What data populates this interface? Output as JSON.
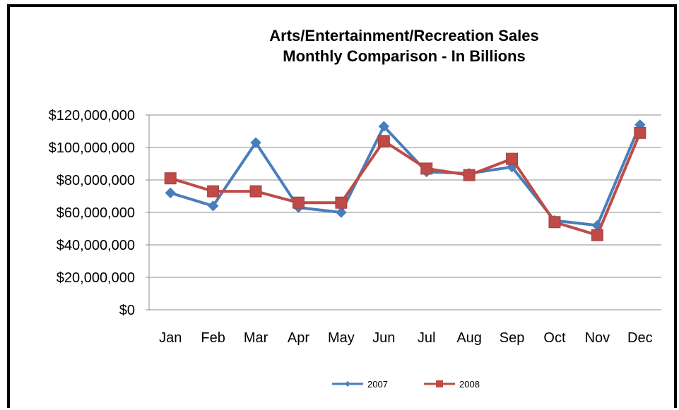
{
  "chart_data": {
    "type": "line",
    "title": [
      "Arts/Entertainment/Recreation Sales",
      "Monthly Comparison - In Billions"
    ],
    "xlabel": "",
    "ylabel": "",
    "categories": [
      "Jan",
      "Feb",
      "Mar",
      "Apr",
      "May",
      "Jun",
      "Jul",
      "Aug",
      "Sep",
      "Oct",
      "Nov",
      "Dec"
    ],
    "ylim": [
      0,
      120000000
    ],
    "yticks": [
      0,
      20000000,
      40000000,
      60000000,
      80000000,
      100000000,
      120000000
    ],
    "ytick_labels": [
      "$0",
      "$20,000,000",
      "$40,000,000",
      "$60,000,000",
      "$80,000,000",
      "$100,000,000",
      "$120,000,000"
    ],
    "grid": "horizontal",
    "legend_position": "bottom",
    "series": [
      {
        "name": "2007",
        "color": "#4A7EBB",
        "marker": "diamond",
        "values": [
          72000000,
          64000000,
          103000000,
          63000000,
          60000000,
          113000000,
          85000000,
          84000000,
          88000000,
          55000000,
          52000000,
          114000000
        ]
      },
      {
        "name": "2008",
        "color": "#BE4B48",
        "marker": "square",
        "values": [
          81000000,
          73000000,
          73000000,
          66000000,
          66000000,
          104000000,
          87000000,
          83000000,
          93000000,
          54000000,
          46000000,
          109000000
        ]
      }
    ]
  }
}
